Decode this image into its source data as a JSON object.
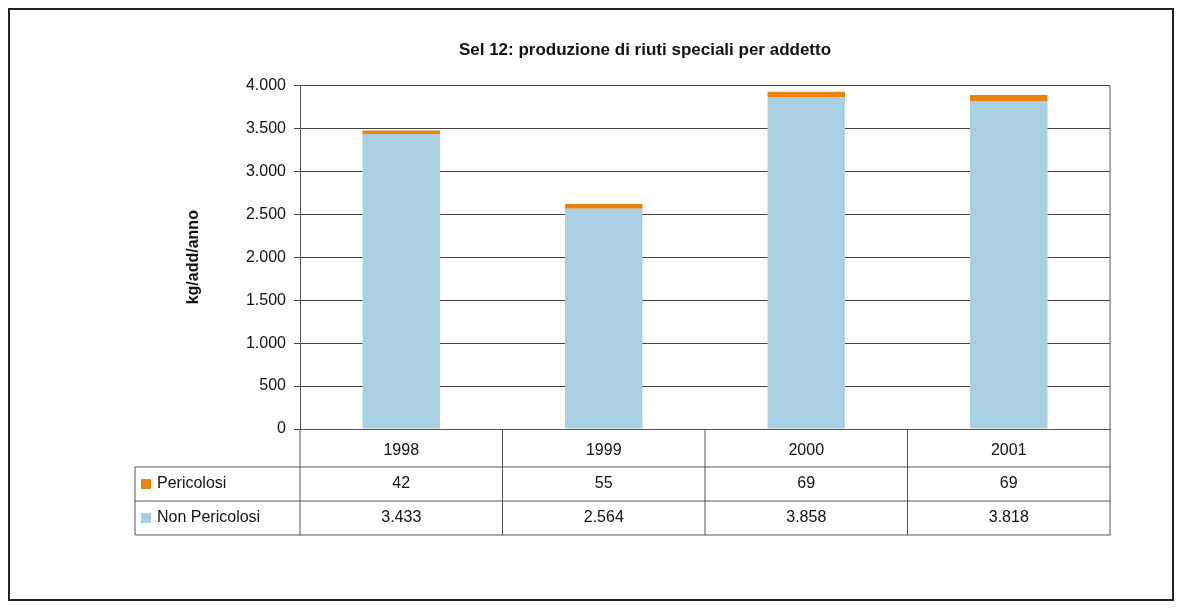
{
  "chart_data": {
    "type": "bar",
    "title": "Sel 12: produzione di riuti speciali per addetto",
    "ylabel": "kg/add/anno",
    "categories": [
      "1998",
      "1999",
      "2000",
      "2001"
    ],
    "stacked": true,
    "grid": "y",
    "legend": "bottom left",
    "ylim": [
      0,
      4000
    ],
    "yticks": [
      {
        "value": 0,
        "label": "0"
      },
      {
        "value": 500,
        "label": "500"
      },
      {
        "value": 1000,
        "label": "1.000"
      },
      {
        "value": 1500,
        "label": "1.500"
      },
      {
        "value": 2000,
        "label": "2.000"
      },
      {
        "value": 2500,
        "label": "2.500"
      },
      {
        "value": 3000,
        "label": "3.000"
      },
      {
        "value": 3500,
        "label": "3.500"
      },
      {
        "value": 4000,
        "label": "4.000"
      }
    ],
    "series": [
      {
        "name": "Non Pericolosi",
        "color": "#a9cfe3",
        "values": [
          3433,
          2564,
          3858,
          3818
        ],
        "value_labels": [
          "3.433",
          "2.564",
          "3.858",
          "3.818"
        ]
      },
      {
        "name": "Pericolosi",
        "color": "#e8830c",
        "values": [
          42,
          55,
          69,
          69
        ],
        "value_labels": [
          "42",
          "55",
          "69",
          "69"
        ]
      }
    ]
  }
}
